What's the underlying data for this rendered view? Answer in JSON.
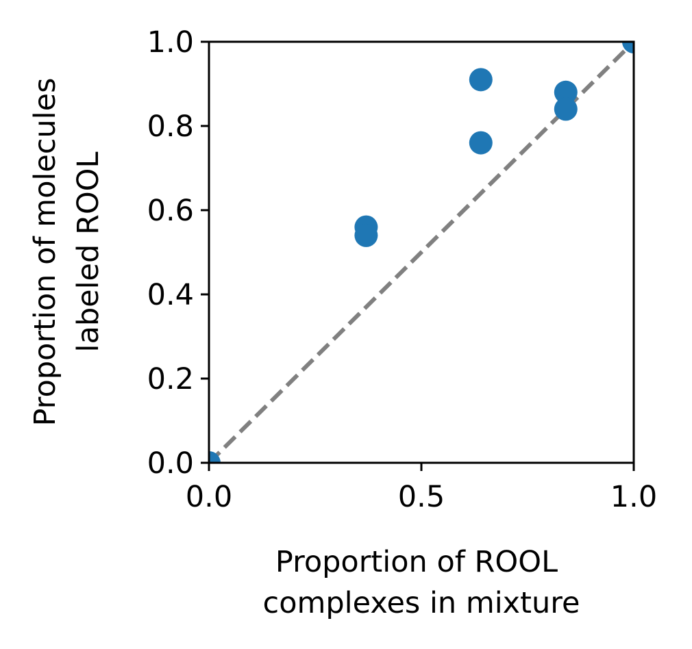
{
  "chart_data": {
    "type": "scatter",
    "xlabel": [
      "Proportion of ROOL",
      "complexes in mixture"
    ],
    "ylabel": [
      "Proportion of molecules",
      "labeled ROOL"
    ],
    "xlim": [
      0.0,
      1.0
    ],
    "ylim": [
      0.0,
      1.0
    ],
    "xticks": [
      "0.0",
      "0.5",
      "1.0"
    ],
    "yticks": [
      "0.0",
      "0.2",
      "0.4",
      "0.6",
      "0.8",
      "1.0"
    ],
    "grid": false,
    "series": [
      {
        "color": "#1f77b4",
        "points": [
          {
            "x": 0.0,
            "y": 0.0
          },
          {
            "x": 0.37,
            "y": 0.56
          },
          {
            "x": 0.37,
            "y": 0.54
          },
          {
            "x": 0.64,
            "y": 0.91
          },
          {
            "x": 0.64,
            "y": 0.76
          },
          {
            "x": 0.84,
            "y": 0.88
          },
          {
            "x": 0.84,
            "y": 0.84
          },
          {
            "x": 1.0,
            "y": 1.0
          }
        ]
      }
    ],
    "reference_line": {
      "from": [
        0,
        0
      ],
      "to": [
        1,
        1
      ],
      "style": "dashed",
      "color": "#808080"
    }
  }
}
